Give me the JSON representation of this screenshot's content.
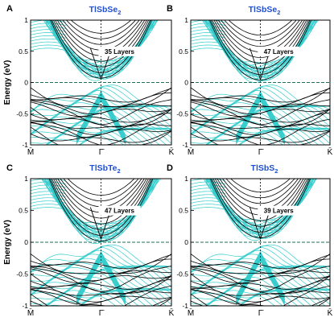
{
  "figure": {
    "colors": {
      "bulk": "#33cccc",
      "surface": "#000000",
      "fermi": "#1f6f5a",
      "title": "#2050d0"
    }
  },
  "chart_data": [
    {
      "type": "line",
      "panel_letter": "A",
      "title_main": "TlSbSe",
      "title_sub": "2",
      "layers_label": "35 Layers",
      "ylabel": "Energy (eV)",
      "ylim": [
        -1,
        1
      ],
      "yticks": [
        -1,
        -0.5,
        0,
        0.5,
        1
      ],
      "ytick_labels": [
        "-1",
        "-0.5",
        "0",
        "0.5",
        "1"
      ],
      "x_tick_labels": [
        "M̄",
        "Γ̄",
        "K̄"
      ],
      "fermi_level": 0,
      "series": [
        {
          "values_desc": "bulk conduction",
          "x": [
            -1,
            -0.5,
            -0.2,
            0,
            0.2,
            0.5,
            1
          ],
          "y": [
            0.95,
            0.55,
            0.2,
            0.05,
            0.2,
            0.55,
            0.95
          ]
        },
        {
          "values_desc": "surface valence",
          "x": [
            -1,
            -0.5,
            -0.2,
            0,
            0.2,
            0.5,
            1
          ],
          "y": [
            -0.1,
            -0.2,
            -0.45,
            -0.55,
            -0.45,
            -0.2,
            -0.1
          ]
        }
      ]
    },
    {
      "type": "line",
      "panel_letter": "B",
      "title_main": "TlSbSe",
      "title_sub": "2",
      "layers_label": "47 Layers",
      "ylabel": "",
      "ylim": [
        -1,
        1
      ],
      "yticks": [
        -1,
        -0.5,
        0,
        0.5,
        1
      ],
      "ytick_labels": [
        "-1",
        "-0.5",
        "0",
        "0.5",
        "1"
      ],
      "x_tick_labels": [
        "M̄",
        "Γ̄",
        "K̄"
      ],
      "fermi_level": 0,
      "series": [
        {
          "values_desc": "bulk conduction",
          "x": [
            -1,
            -0.5,
            -0.2,
            0,
            0.2,
            0.5,
            1
          ],
          "y": [
            0.95,
            0.5,
            0.15,
            0.02,
            0.15,
            0.5,
            0.95
          ]
        },
        {
          "values_desc": "surface valence",
          "x": [
            -1,
            -0.5,
            -0.2,
            0,
            0.2,
            0.5,
            1
          ],
          "y": [
            -0.1,
            -0.2,
            -0.45,
            -0.5,
            -0.45,
            -0.2,
            -0.1
          ]
        }
      ]
    },
    {
      "type": "line",
      "panel_letter": "C",
      "title_main": "TlSbTe",
      "title_sub": "2",
      "layers_label": "47 Layers",
      "ylabel": "Energy (eV)",
      "ylim": [
        -1,
        1
      ],
      "yticks": [
        -1,
        -0.5,
        0,
        0.5,
        1
      ],
      "ytick_labels": [
        "-1",
        "-0.5",
        "0",
        "0.5",
        "1"
      ],
      "x_tick_labels": [
        "M̄",
        "Γ̄",
        "K̄"
      ],
      "fermi_level": 0,
      "series": [
        {
          "values_desc": "bulk conduction",
          "x": [
            -1,
            -0.5,
            -0.2,
            0,
            0.2,
            0.5,
            1
          ],
          "y": [
            0.95,
            0.6,
            0.25,
            0.0,
            0.25,
            0.6,
            0.95
          ]
        },
        {
          "values_desc": "surface valence",
          "x": [
            -1,
            -0.5,
            -0.2,
            0,
            0.2,
            0.5,
            1
          ],
          "y": [
            -0.2,
            -0.3,
            -0.55,
            -0.6,
            -0.55,
            -0.3,
            -0.2
          ]
        }
      ]
    },
    {
      "type": "line",
      "panel_letter": "D",
      "title_main": "TlSbS",
      "title_sub": "2",
      "layers_label": "39 Layers",
      "ylabel": "",
      "ylim": [
        -1,
        1
      ],
      "yticks": [
        -1,
        -0.5,
        0,
        0.5,
        1
      ],
      "ytick_labels": [
        "-1",
        "-0.5",
        "0",
        "0.5",
        "1"
      ],
      "x_tick_labels": [
        "M̄",
        "Γ̄",
        "K̄"
      ],
      "fermi_level": 0,
      "series": [
        {
          "values_desc": "bulk conduction",
          "x": [
            -1,
            -0.5,
            -0.2,
            0,
            0.2,
            0.5,
            1
          ],
          "y": [
            0.95,
            0.55,
            0.2,
            0.05,
            0.2,
            0.55,
            0.95
          ]
        },
        {
          "values_desc": "surface valence",
          "x": [
            -1,
            -0.5,
            -0.2,
            0,
            0.2,
            0.5,
            1
          ],
          "y": [
            -0.2,
            -0.3,
            -0.4,
            -0.45,
            -0.4,
            -0.3,
            -0.2
          ]
        }
      ]
    }
  ]
}
